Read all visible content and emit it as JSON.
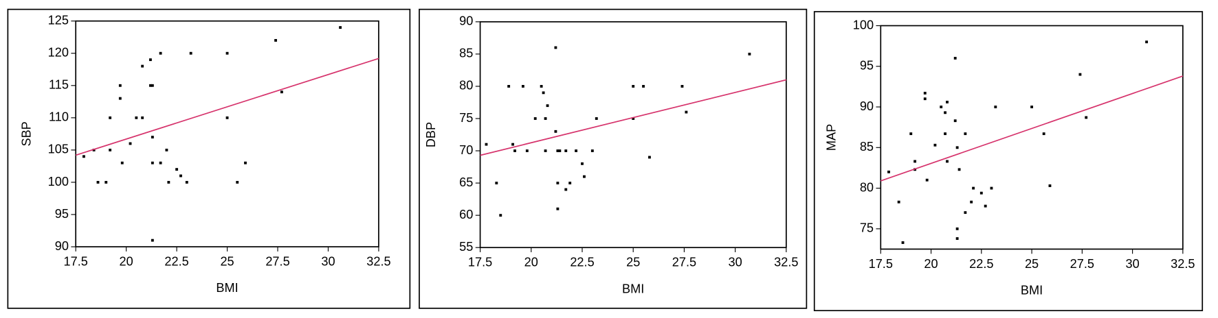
{
  "chart_data": [
    {
      "type": "scatter",
      "x_label": "BMI",
      "y_label": "SBP",
      "color": "#000000",
      "xlim": [
        17.5,
        32.5
      ],
      "ylim": [
        90,
        125
      ],
      "xticks": [
        17.5,
        20,
        22.5,
        25,
        27.5,
        30,
        32.5
      ],
      "yticks": [
        90,
        95,
        100,
        105,
        110,
        115,
        120,
        125
      ],
      "x": [
        17.9,
        18.4,
        18.6,
        19.0,
        19.2,
        19.2,
        19.7,
        19.7,
        19.8,
        20.2,
        20.5,
        20.8,
        20.8,
        21.2,
        21.2,
        21.3,
        21.3,
        21.3,
        21.3,
        21.7,
        21.7,
        22.0,
        22.1,
        22.5,
        22.7,
        23.0,
        23.2,
        25.0,
        25.0,
        25.5,
        25.9,
        27.4,
        27.7,
        30.6
      ],
      "y": [
        104,
        105,
        100,
        100,
        105,
        110,
        115,
        113,
        103,
        106,
        110,
        110,
        118,
        119,
        115,
        115,
        103,
        107,
        91,
        120,
        103,
        105,
        100,
        102,
        101,
        100,
        120,
        120,
        110,
        100,
        103,
        122,
        114,
        124
      ],
      "fit_line": {
        "x": [
          17.5,
          32.5
        ],
        "y": [
          104.2,
          119.2
        ],
        "color": "#d6336c"
      }
    },
    {
      "type": "scatter",
      "x_label": "BMI",
      "y_label": "DBP",
      "color": "#000000",
      "xlim": [
        17.5,
        32.5
      ],
      "ylim": [
        55,
        90
      ],
      "xticks": [
        17.5,
        20,
        22.5,
        25,
        27.5,
        30,
        32.5
      ],
      "yticks": [
        55,
        60,
        65,
        70,
        75,
        80,
        85,
        90
      ],
      "x": [
        17.8,
        18.3,
        18.5,
        18.9,
        19.1,
        19.2,
        19.6,
        19.8,
        20.2,
        20.5,
        20.6,
        20.7,
        20.7,
        20.8,
        21.2,
        21.2,
        21.3,
        21.3,
        21.3,
        21.4,
        21.7,
        21.7,
        21.9,
        22.2,
        22.5,
        22.6,
        23.0,
        23.2,
        25.0,
        25.0,
        25.5,
        25.8,
        27.4,
        27.6,
        30.7
      ],
      "y": [
        71,
        65,
        60,
        80,
        71,
        70,
        80,
        70,
        75,
        80,
        79,
        75,
        70,
        77,
        86,
        73,
        70,
        65,
        61,
        70,
        70,
        64,
        65,
        70,
        68,
        66,
        70,
        75,
        80,
        75,
        80,
        69,
        80,
        76,
        85
      ],
      "fit_line": {
        "x": [
          17.5,
          32.5
        ],
        "y": [
          69.3,
          81.0
        ],
        "color": "#d6336c"
      }
    },
    {
      "type": "scatter",
      "x_label": "BMI",
      "y_label": "MAP",
      "color": "#000000",
      "xlim": [
        17.5,
        32.5
      ],
      "ylim": [
        72.5,
        100
      ],
      "xticks": [
        17.5,
        20,
        22.5,
        25,
        27.5,
        30,
        32.5
      ],
      "yticks": [
        75,
        80,
        85,
        90,
        95,
        100
      ],
      "x": [
        17.9,
        18.4,
        18.6,
        19.0,
        19.2,
        19.2,
        19.7,
        19.7,
        19.8,
        20.2,
        20.5,
        20.7,
        20.8,
        20.7,
        20.8,
        21.2,
        21.2,
        21.3,
        21.4,
        21.3,
        21.3,
        21.7,
        21.7,
        22.0,
        22.1,
        22.5,
        22.7,
        23.0,
        23.2,
        25.0,
        25.6,
        25.9,
        27.4,
        27.7,
        30.7
      ],
      "y": [
        82,
        78.3,
        73.3,
        86.7,
        82.3,
        83.3,
        91.7,
        91,
        81,
        85.3,
        90,
        89.3,
        90.6,
        86.7,
        83.3,
        96,
        88.3,
        85,
        82.3,
        75,
        73.8,
        77,
        86.7,
        78.3,
        80,
        79.4,
        77.8,
        80,
        90,
        90,
        86.7,
        80.3,
        94,
        88.7,
        98
      ],
      "fit_line": {
        "x": [
          17.5,
          32.5
        ],
        "y": [
          80.9,
          93.8
        ],
        "color": "#d6336c"
      }
    }
  ]
}
